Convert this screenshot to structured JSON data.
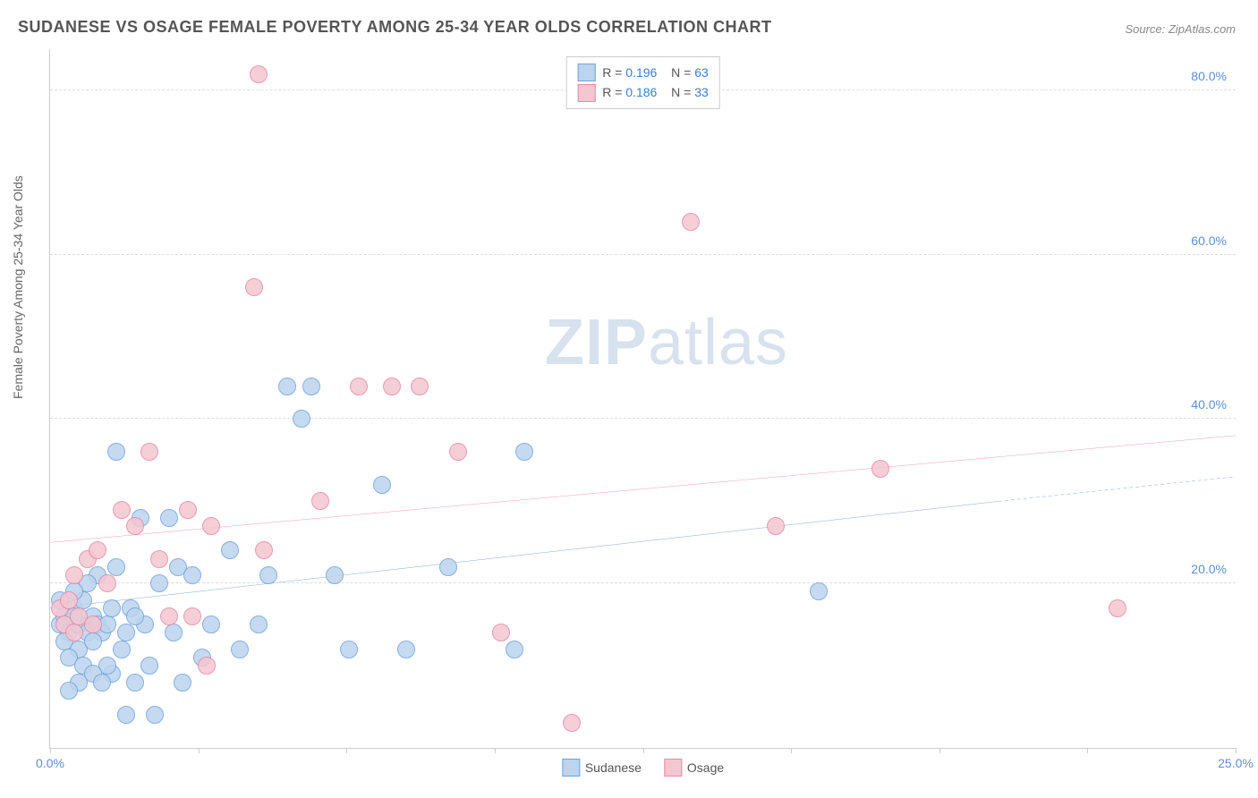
{
  "title": "SUDANESE VS OSAGE FEMALE POVERTY AMONG 25-34 YEAR OLDS CORRELATION CHART",
  "source": "Source: ZipAtlas.com",
  "yaxis_label": "Female Poverty Among 25-34 Year Olds",
  "watermark_a": "ZIP",
  "watermark_b": "atlas",
  "series": [
    {
      "name": "Sudanese",
      "fill": "#bcd4ee",
      "stroke": "#6fa3dd",
      "r_label": "R = ",
      "r_value": "0.196",
      "n_label": "N = ",
      "n_value": "63",
      "trend": {
        "x1": 0,
        "y1": 17,
        "x2": 20,
        "y2": 30,
        "x2_dash": 25,
        "y2_dash": 33,
        "color": "#2f6fc7",
        "width": 2
      }
    },
    {
      "name": "Osage",
      "fill": "#f4c6d1",
      "stroke": "#e48aa4",
      "r_label": "R = ",
      "r_value": "0.186",
      "n_label": "N = ",
      "n_value": "33",
      "trend": {
        "x1": 0,
        "y1": 25,
        "x2": 25,
        "y2": 38,
        "color": "#e05a84",
        "width": 2
      }
    }
  ],
  "xlim": [
    0,
    25
  ],
  "ylim": [
    0,
    85
  ],
  "xticks": [
    0,
    3.125,
    6.25,
    9.375,
    12.5,
    15.625,
    18.75,
    21.875,
    25
  ],
  "xtick_labels": {
    "0": "0.0%",
    "25": "25.0%"
  },
  "yticks": [
    20,
    40,
    60,
    80
  ],
  "ytick_labels": {
    "20": "20.0%",
    "40": "40.0%",
    "60": "60.0%",
    "80": "80.0%"
  },
  "point_radius": 9,
  "points_sudanese": [
    [
      0.2,
      15
    ],
    [
      0.3,
      16
    ],
    [
      0.4,
      14
    ],
    [
      0.5,
      17
    ],
    [
      0.6,
      15
    ],
    [
      0.7,
      18
    ],
    [
      0.8,
      14
    ],
    [
      0.3,
      13
    ],
    [
      0.5,
      16
    ],
    [
      0.6,
      12
    ],
    [
      0.9,
      16
    ],
    [
      1.0,
      15
    ],
    [
      1.1,
      14
    ],
    [
      0.4,
      11
    ],
    [
      0.7,
      10
    ],
    [
      0.9,
      13
    ],
    [
      1.2,
      15
    ],
    [
      1.3,
      9
    ],
    [
      1.5,
      12
    ],
    [
      1.6,
      14
    ],
    [
      1.4,
      22
    ],
    [
      1.8,
      8
    ],
    [
      1.2,
      10
    ],
    [
      1.0,
      21
    ],
    [
      2.0,
      15
    ],
    [
      2.1,
      10
    ],
    [
      2.3,
      20
    ],
    [
      2.2,
      4
    ],
    [
      1.6,
      4
    ],
    [
      2.8,
      8
    ],
    [
      2.6,
      14
    ],
    [
      2.7,
      22
    ],
    [
      3.4,
      15
    ],
    [
      3.2,
      11
    ],
    [
      3.0,
      21
    ],
    [
      3.8,
      24
    ],
    [
      4.0,
      12
    ],
    [
      4.4,
      15
    ],
    [
      4.6,
      21
    ],
    [
      5.0,
      44
    ],
    [
      5.5,
      44
    ],
    [
      5.3,
      40
    ],
    [
      6.0,
      21
    ],
    [
      6.3,
      12
    ],
    [
      7.0,
      32
    ],
    [
      7.5,
      12
    ],
    [
      8.4,
      22
    ],
    [
      9.8,
      12
    ],
    [
      10.0,
      36
    ],
    [
      16.2,
      19
    ],
    [
      1.4,
      36
    ],
    [
      1.9,
      28
    ],
    [
      2.5,
      28
    ],
    [
      0.8,
      20
    ],
    [
      0.9,
      9
    ],
    [
      1.1,
      8
    ],
    [
      1.3,
      17
    ],
    [
      0.5,
      19
    ],
    [
      1.7,
      17
    ],
    [
      0.2,
      18
    ],
    [
      0.6,
      8
    ],
    [
      1.8,
      16
    ],
    [
      0.4,
      7
    ]
  ],
  "points_osage": [
    [
      0.2,
      17
    ],
    [
      0.3,
      15
    ],
    [
      0.5,
      14
    ],
    [
      0.4,
      18
    ],
    [
      0.6,
      16
    ],
    [
      0.8,
      23
    ],
    [
      0.5,
      21
    ],
    [
      0.9,
      15
    ],
    [
      1.0,
      24
    ],
    [
      1.2,
      20
    ],
    [
      1.5,
      29
    ],
    [
      1.8,
      27
    ],
    [
      2.1,
      36
    ],
    [
      2.3,
      23
    ],
    [
      2.5,
      16
    ],
    [
      2.9,
      29
    ],
    [
      3.4,
      27
    ],
    [
      3.0,
      16
    ],
    [
      3.3,
      10
    ],
    [
      4.3,
      56
    ],
    [
      4.5,
      24
    ],
    [
      5.7,
      30
    ],
    [
      6.5,
      44
    ],
    [
      7.2,
      44
    ],
    [
      7.8,
      44
    ],
    [
      8.6,
      36
    ],
    [
      9.5,
      14
    ],
    [
      11.0,
      3
    ],
    [
      13.5,
      64
    ],
    [
      15.3,
      27
    ],
    [
      17.5,
      34
    ],
    [
      22.5,
      17
    ],
    [
      4.4,
      82
    ]
  ]
}
